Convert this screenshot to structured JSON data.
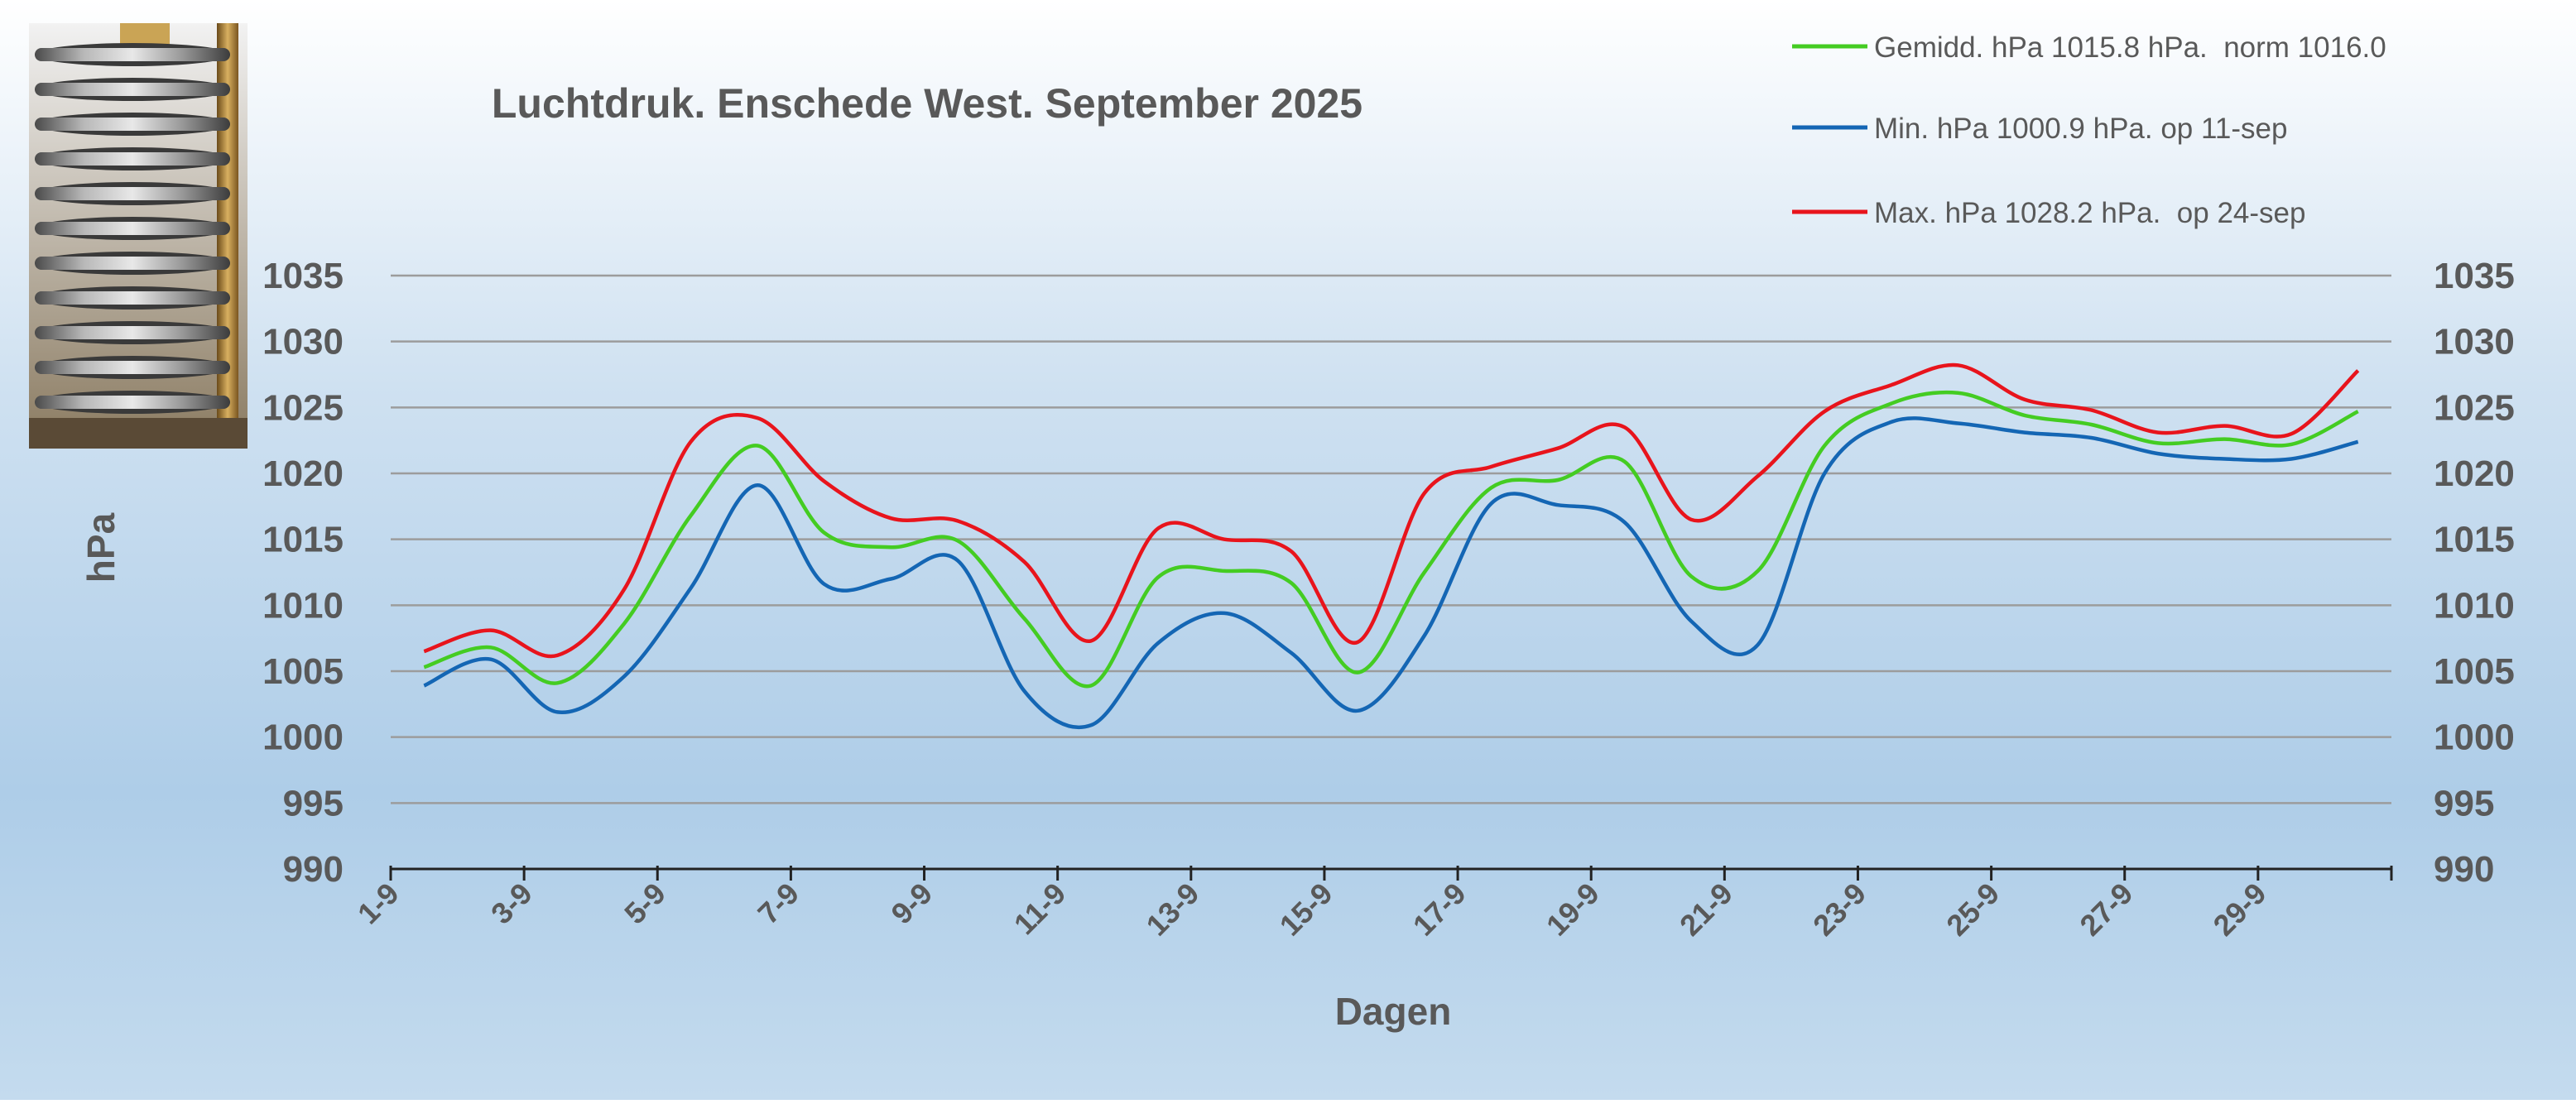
{
  "chart_data": {
    "type": "line",
    "title": "Luchtdruk. Enschede West. September 2025",
    "xlabel": "Dagen",
    "ylabel": "hPa",
    "ylim": [
      990,
      1035
    ],
    "yticks": [
      990,
      995,
      1000,
      1005,
      1010,
      1015,
      1020,
      1025,
      1030,
      1035
    ],
    "xtick_labels": [
      "1-9",
      "3-9",
      "5-9",
      "7-9",
      "9-9",
      "11-9",
      "13-9",
      "15-9",
      "17-9",
      "19-9",
      "21-9",
      "23-9",
      "25-9",
      "27-9",
      "29-9"
    ],
    "x": [
      "1-9",
      "2-9",
      "3-9",
      "4-9",
      "5-9",
      "6-9",
      "7-9",
      "8-9",
      "9-9",
      "10-9",
      "11-9",
      "12-9",
      "13-9",
      "14-9",
      "15-9",
      "16-9",
      "17-9",
      "18-9",
      "19-9",
      "20-9",
      "21-9",
      "22-9",
      "23-9",
      "24-9",
      "25-9",
      "26-9",
      "27-9",
      "28-9",
      "29-9",
      "30-9"
    ],
    "grid": true,
    "legend_position": "top-right",
    "series": [
      {
        "name": "Gemidd. hPa 1015.8 hPa.  norm 1016.0",
        "color": "#44cc22",
        "values": [
          1005.3,
          1006.8,
          1004.1,
          1008.6,
          1016.8,
          1022.1,
          1015.5,
          1014.4,
          1014.9,
          1009.0,
          1003.9,
          1012.1,
          1012.6,
          1011.7,
          1004.9,
          1012.5,
          1018.9,
          1019.5,
          1020.9,
          1012.2,
          1012.6,
          1022.1,
          1025.3,
          1026.1,
          1024.4,
          1023.7,
          1022.3,
          1022.6,
          1022.2,
          1024.7
        ]
      },
      {
        "name": "Min. hPa 1000.9 hPa. op 11-sep",
        "color": "#1466b4",
        "values": [
          1003.9,
          1005.9,
          1001.9,
          1004.6,
          1011.3,
          1019.1,
          1011.6,
          1012.0,
          1013.4,
          1003.5,
          1000.9,
          1007.1,
          1009.4,
          1006.4,
          1002.0,
          1007.7,
          1017.7,
          1017.6,
          1016.3,
          1008.8,
          1007.0,
          1020.0,
          1023.9,
          1023.8,
          1023.1,
          1022.7,
          1021.5,
          1021.1,
          1021.1,
          1022.4
        ]
      },
      {
        "name": "Max. hPa 1028.2 hPa.  op 24-sep",
        "color": "#e8141c",
        "values": [
          1006.5,
          1008.1,
          1006.2,
          1011.2,
          1022.4,
          1024.2,
          1019.4,
          1016.6,
          1016.4,
          1013.3,
          1007.3,
          1015.8,
          1015.0,
          1014.1,
          1007.2,
          1018.5,
          1020.5,
          1021.9,
          1023.5,
          1016.5,
          1019.8,
          1024.7,
          1026.7,
          1028.2,
          1025.6,
          1024.8,
          1023.1,
          1023.6,
          1023.0,
          1027.8
        ]
      }
    ]
  },
  "image": {
    "name": "barometer-photo"
  }
}
